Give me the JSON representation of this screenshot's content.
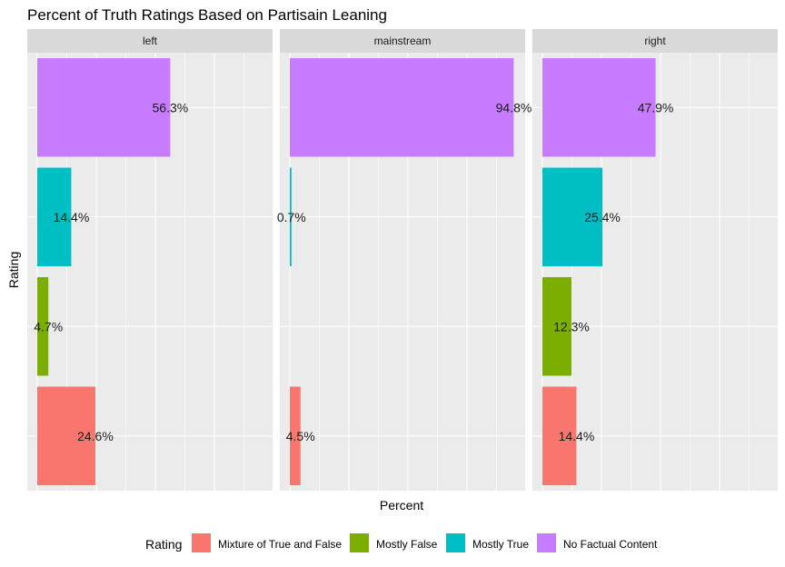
{
  "chart_data": {
    "type": "bar",
    "orientation": "horizontal",
    "title": "Percent of Truth Ratings Based on Partisain Leaning",
    "xlabel": "Percent",
    "ylabel": "Rating",
    "xlim": [
      0,
      1.0
    ],
    "grid": true,
    "legend_title": "Rating",
    "legend_position": "bottom",
    "categories": [
      "Mixture of True and False",
      "Mostly False",
      "Mostly True",
      "No Factual Content"
    ],
    "colors": [
      "#F8766D",
      "#7CAE00",
      "#00BFC4",
      "#C77CFF"
    ],
    "panels": [
      {
        "name": "left",
        "values": [
          0.246,
          0.047,
          0.144,
          0.563
        ],
        "labels": [
          "24.6%",
          "4.7%",
          "14.4%",
          "56.3%"
        ]
      },
      {
        "name": "mainstream",
        "values": [
          0.045,
          0.0,
          0.007,
          0.948
        ],
        "labels": [
          "4.5%",
          "",
          "0.7%",
          "94.8%"
        ]
      },
      {
        "name": "right",
        "values": [
          0.144,
          0.123,
          0.254,
          0.479
        ],
        "labels": [
          "14.4%",
          "12.3%",
          "25.4%",
          "47.9%"
        ]
      }
    ]
  }
}
